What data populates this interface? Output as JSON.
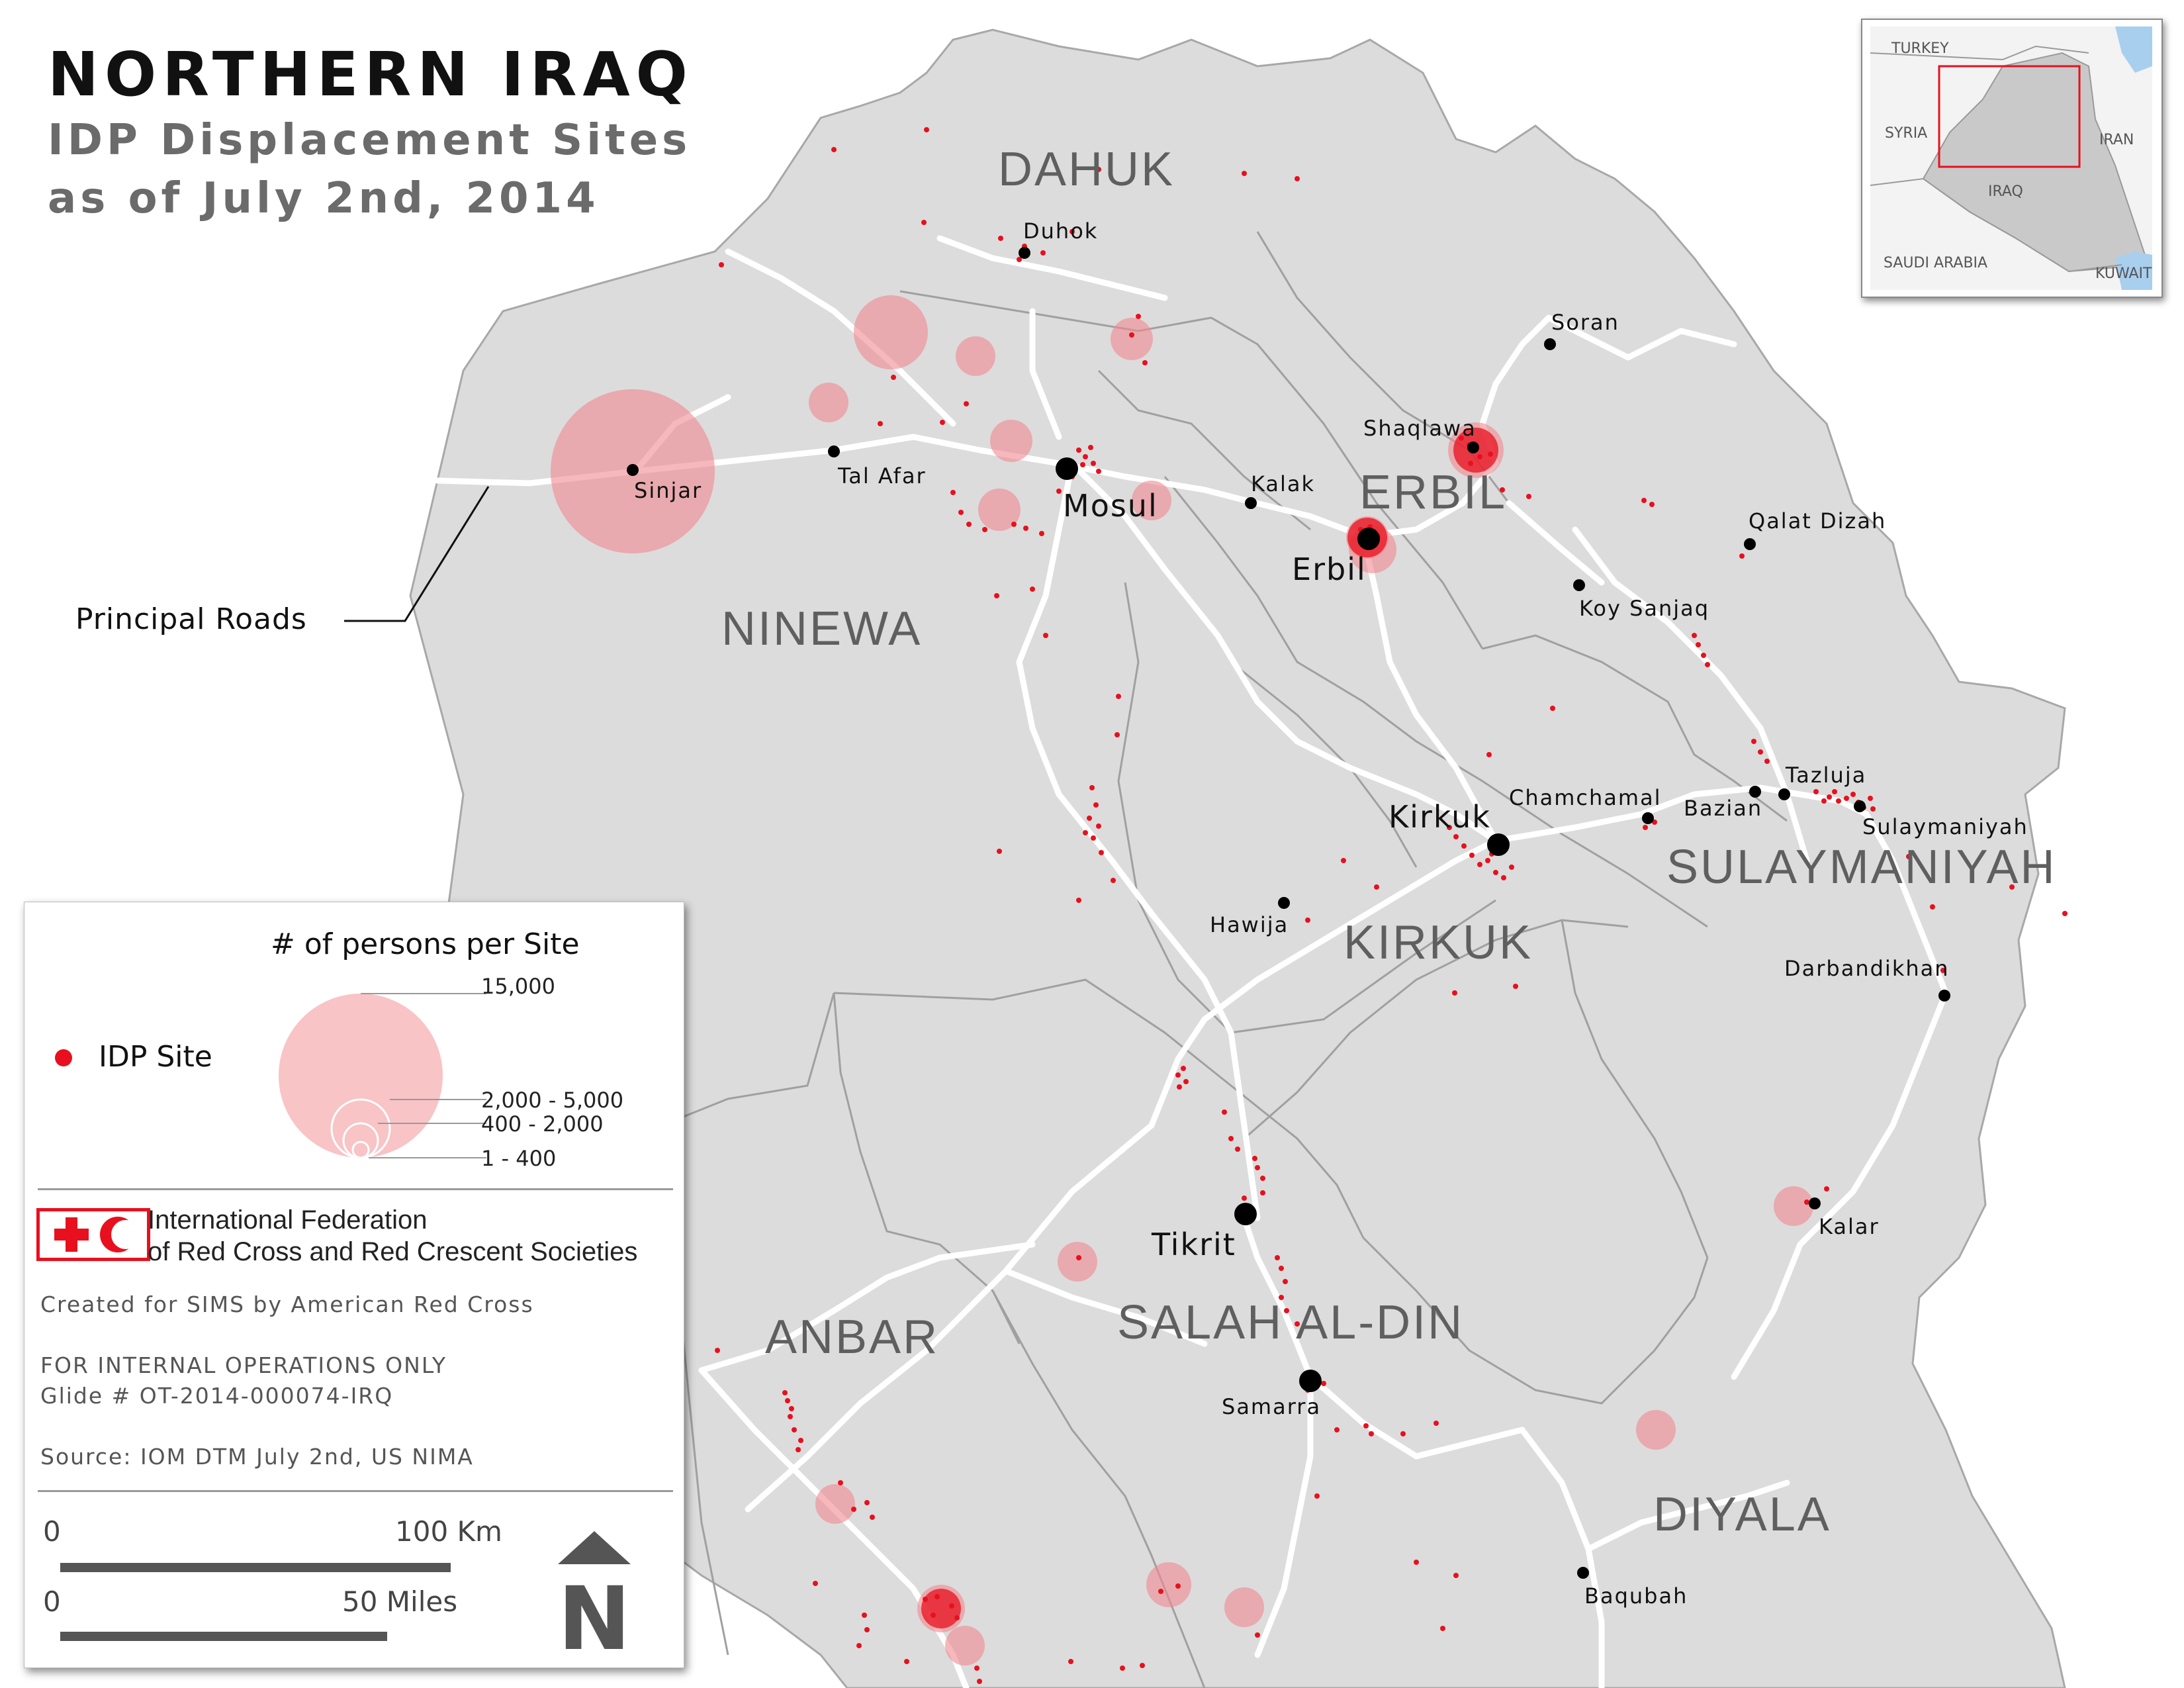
{
  "title": "NORTHERN IRAQ",
  "subtitle_line1": "IDP Displacement Sites",
  "subtitle_line2": "as of July 2nd, 2014",
  "road_label": "Principal Roads",
  "colors": {
    "land": "#dcdcdc",
    "road": "#ffffff",
    "boundary": "#9c9c9c",
    "idp": "#e8101e",
    "idp_circle": "#f0898f",
    "city": "#000000",
    "water": "#a9cfef"
  },
  "provinces": [
    {
      "name": "DAHUK"
    },
    {
      "name": "ERBIL"
    },
    {
      "name": "NINEWA"
    },
    {
      "name": "SULAYMANIYAH"
    },
    {
      "name": "KIRKUK"
    },
    {
      "name": "SALAH AL-DIN"
    },
    {
      "name": "ANBAR"
    },
    {
      "name": "DIYALA"
    }
  ],
  "cities": [
    {
      "name": "Duhok",
      "size": "small"
    },
    {
      "name": "Soran",
      "size": "small"
    },
    {
      "name": "Shaqlawa",
      "size": "small"
    },
    {
      "name": "Tal Afar",
      "size": "small"
    },
    {
      "name": "Sinjar",
      "size": "small"
    },
    {
      "name": "Mosul",
      "size": "large"
    },
    {
      "name": "Kalak",
      "size": "small"
    },
    {
      "name": "Erbil",
      "size": "large"
    },
    {
      "name": "Qalat Dizah",
      "size": "small"
    },
    {
      "name": "Koy Sanjaq",
      "size": "small"
    },
    {
      "name": "Chamchamal",
      "size": "small"
    },
    {
      "name": "Kirkuk",
      "size": "large"
    },
    {
      "name": "Tazluja",
      "size": "small"
    },
    {
      "name": "Bazian",
      "size": "small"
    },
    {
      "name": "Sulaymaniyah",
      "size": "small"
    },
    {
      "name": "Hawija",
      "size": "small"
    },
    {
      "name": "Darbandikhan",
      "size": "small"
    },
    {
      "name": "Tikrit",
      "size": "large"
    },
    {
      "name": "Kalar",
      "size": "small"
    },
    {
      "name": "Samarra",
      "size": "large"
    },
    {
      "name": "Baqubah",
      "size": "small"
    }
  ],
  "legend": {
    "title": "# of persons per Site",
    "idp_site_label": "IDP Site",
    "size_classes": [
      "15,000",
      "2,000 - 5,000",
      "400 - 2,000",
      "1 - 400"
    ],
    "org_line1": "International Federation",
    "org_line2": "of Red Cross and Red Crescent Societies",
    "created": "Created for SIMS by American Red Cross",
    "internal": "FOR INTERNAL OPERATIONS ONLY",
    "glide": "Glide # OT-2014-000074-IRQ",
    "source": "Source: IOM DTM July 2nd, US NIMA",
    "scale_km_start": "0",
    "scale_km_end": "100 Km",
    "scale_mi_start": "0",
    "scale_mi_end": "50 Miles",
    "north_letter": "N"
  },
  "inset": {
    "countries": [
      "TURKEY",
      "SYRIA",
      "IRAN",
      "IRAQ",
      "SAUDI ARABIA",
      "KUWAIT"
    ]
  }
}
